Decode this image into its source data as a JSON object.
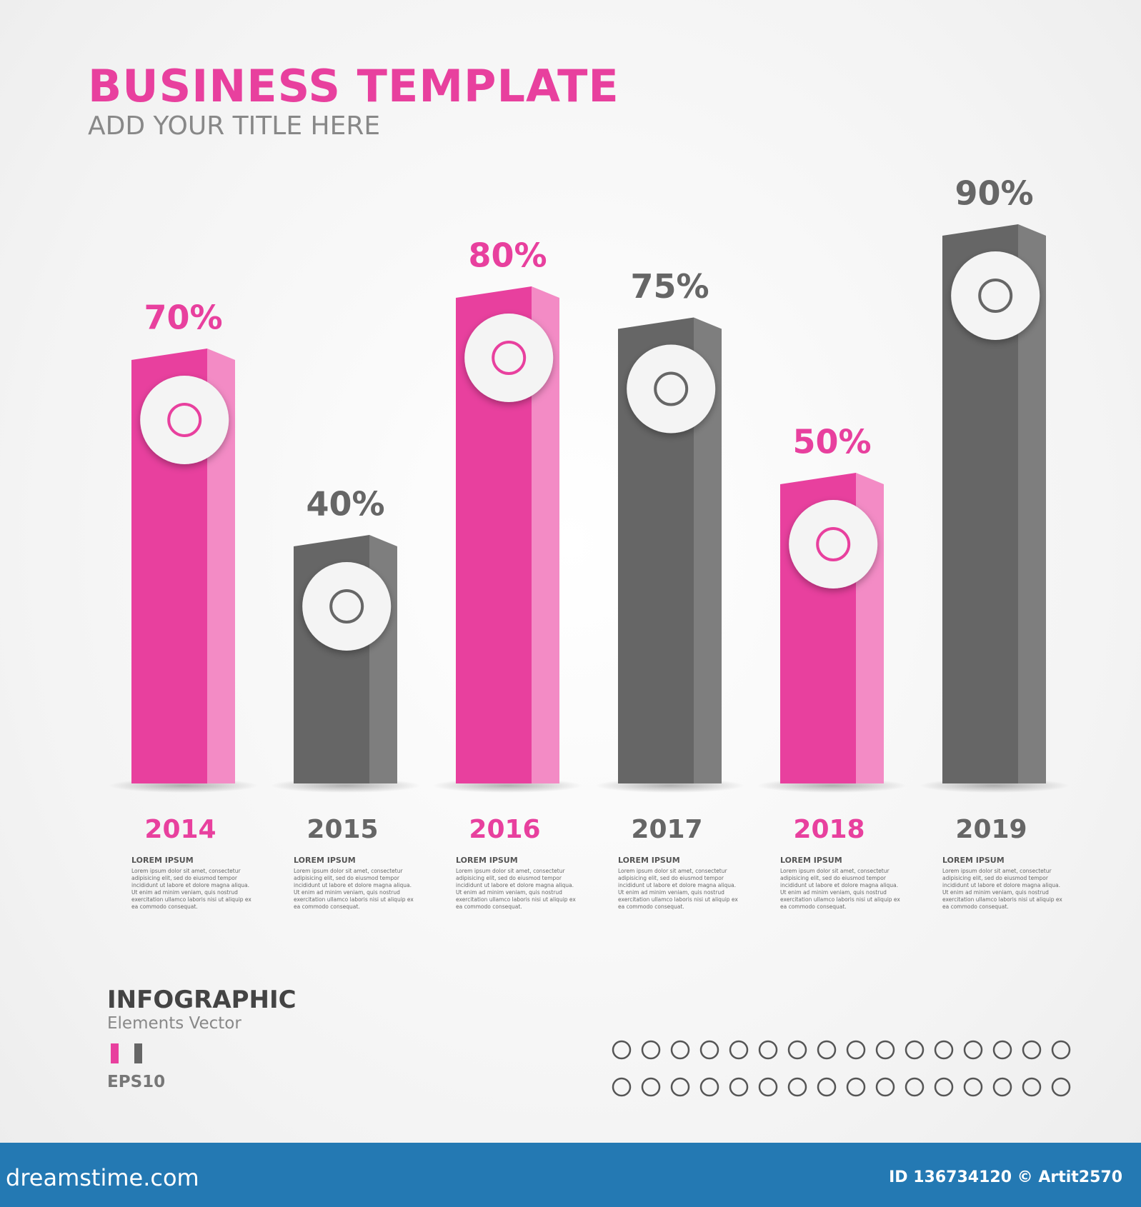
{
  "chart_data": {
    "type": "bar",
    "title": "BUSINESS TEMPLATE",
    "subtitle": "ADD YOUR  TITLE HERE",
    "categories": [
      "2014",
      "2015",
      "2016",
      "2017",
      "2018",
      "2019"
    ],
    "values": [
      70,
      40,
      80,
      75,
      50,
      90
    ],
    "value_labels": [
      "70%",
      "40%",
      "80%",
      "75%",
      "50%",
      "90%"
    ],
    "colors": [
      "#e8409e",
      "#666666",
      "#e8409e",
      "#666666",
      "#e8409e",
      "#666666"
    ],
    "side_colors": [
      "#f38bc5",
      "#7e7e7e",
      "#f38bc5",
      "#7e7e7e",
      "#f38bc5",
      "#7e7e7e"
    ]
  },
  "descriptions": [
    {
      "heading": "LOREM IPSUM",
      "text": "Lorem ipsum dolor sit amet, consectetur adipisicing elit, sed do eiusmod tempor incididunt ut labore et dolore magna aliqua. Ut enim ad minim veniam, quis nostrud exercitation ullamco laboris nisi ut aliquip ex ea commodo consequat."
    },
    {
      "heading": "LOREM IPSUM",
      "text": "Lorem ipsum dolor sit amet, consectetur adipisicing elit, sed do eiusmod tempor incididunt ut labore et dolore magna aliqua. Ut enim ad minim veniam, quis nostrud exercitation ullamco laboris nisi ut aliquip ex ea commodo consequat."
    },
    {
      "heading": "LOREM IPSUM",
      "text": "Lorem ipsum dolor sit amet, consectetur adipisicing elit, sed do eiusmod tempor incididunt ut labore et dolore magna aliqua. Ut enim ad minim veniam, quis nostrud exercitation ullamco laboris nisi ut aliquip ex ea commodo consequat."
    },
    {
      "heading": "LOREM IPSUM",
      "text": "Lorem ipsum dolor sit amet, consectetur adipisicing elit, sed do eiusmod tempor incididunt ut labore et dolore magna aliqua. Ut enim ad minim veniam, quis nostrud exercitation ullamco laboris nisi ut aliquip ex ea commodo consequat."
    },
    {
      "heading": "LOREM IPSUM",
      "text": "Lorem ipsum dolor sit amet, consectetur adipisicing elit, sed do eiusmod tempor incididunt ut labore et dolore magna aliqua. Ut enim ad minim veniam, quis nostrud exercitation ullamco laboris nisi ut aliquip ex ea commodo consequat."
    },
    {
      "heading": "LOREM IPSUM",
      "text": "Lorem ipsum dolor sit amet, consectetur adipisicing elit, sed do eiusmod tempor incididunt ut labore et dolore magna aliqua. Ut enim ad minim veniam, quis nostrud exercitation ullamco laboris nisi ut aliquip ex ea commodo consequat."
    }
  ],
  "footer": {
    "heading": "INFOGRAPHIC",
    "subheading": "Elements  Vector",
    "format": "EPS10",
    "site": "dreamstime.com",
    "credit": "ID 136734120 © Artit2570"
  }
}
